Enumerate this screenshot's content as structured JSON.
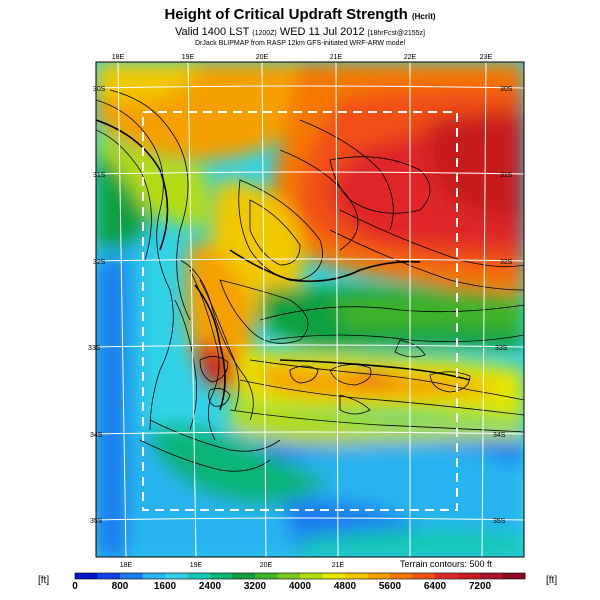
{
  "title": "Height of Critical Updraft Strength",
  "title_unit": "(Hcrit)",
  "valid_prefix": "Valid 1400 LST",
  "valid_code": "(1200Z)",
  "valid_date": "WED 11 Jul 2012",
  "valid_suffix": "[18hrFcst@2155z]",
  "credit": "DrJack BLIPMAP from RASP 12km GFS-initiated WRF-ARW model",
  "terrain_note": "Terrain contours: 500 ft",
  "unit_left": "[ft]",
  "unit_right": "[ft]",
  "lon_labels_top": [
    "18E",
    "19E",
    "20E",
    "21E",
    "22E",
    "23E"
  ],
  "lon_labels_bottom": [
    "18E",
    "19E",
    "20E",
    "21E"
  ],
  "lat_labels_left": [
    "30S",
    "31S",
    "32S",
    "33S",
    "34S",
    "35S"
  ],
  "lat_labels_right": [
    "30S",
    "31S",
    "32S",
    "33S",
    "34S",
    "35S"
  ],
  "colorbar": {
    "labels": [
      "0",
      "800",
      "1600",
      "2400",
      "3200",
      "4000",
      "4800",
      "5600",
      "6400",
      "7200"
    ],
    "colors": [
      "#0a14c8",
      "#1040e6",
      "#1e7cf0",
      "#28b4f0",
      "#30d2e6",
      "#18c8b4",
      "#10b478",
      "#10a040",
      "#40b428",
      "#78c81e",
      "#b4dc14",
      "#e6e600",
      "#f0c800",
      "#f5a000",
      "#f57800",
      "#f05014",
      "#e02828",
      "#c81e1e",
      "#aa1428",
      "#8c0a1e"
    ]
  }
}
